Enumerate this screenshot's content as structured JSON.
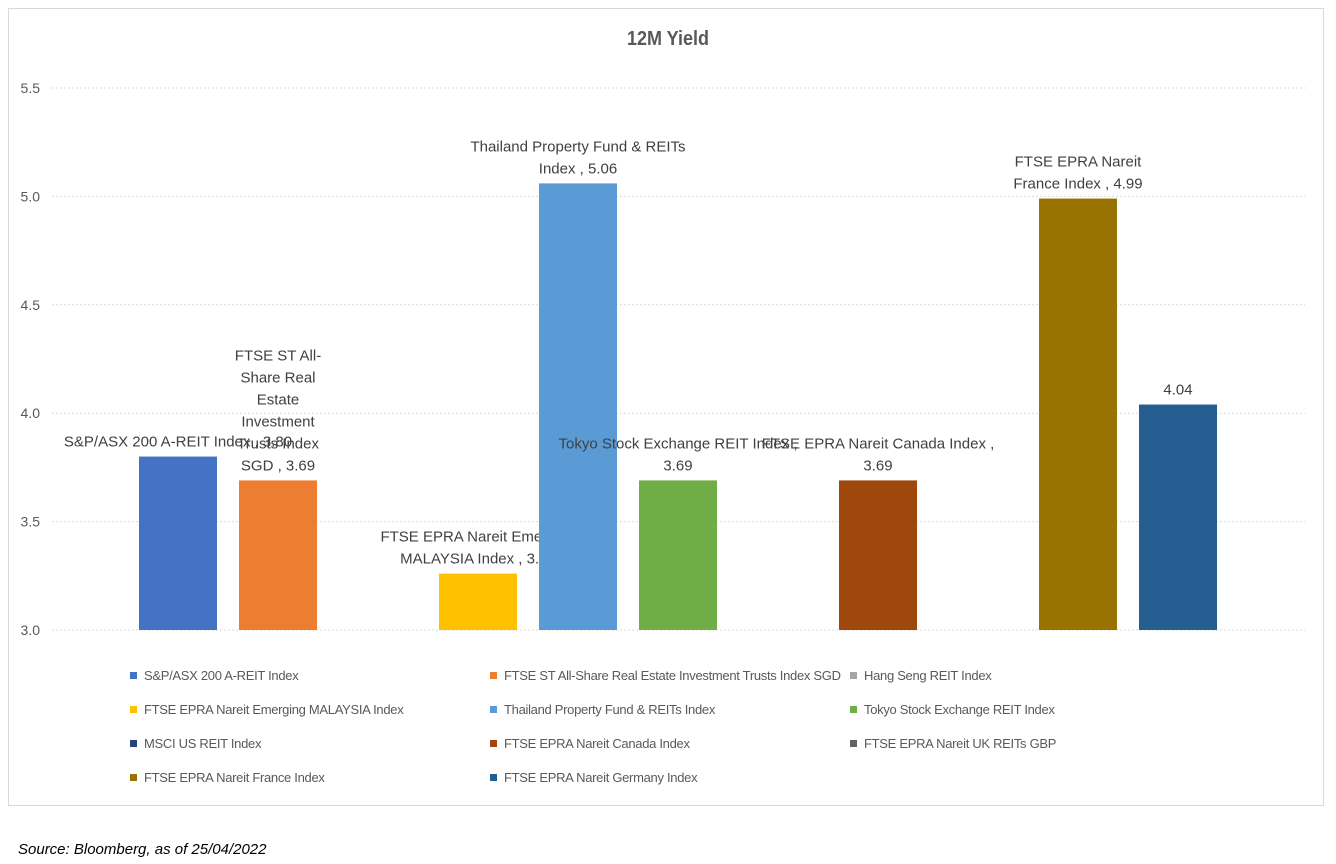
{
  "chart_data": {
    "type": "bar",
    "title": "12M Yield",
    "xlabel": "",
    "ylabel": "",
    "ylim": [
      3.0,
      5.5
    ],
    "yticks": [
      "5.5",
      "5.0",
      "4.5",
      "4.0",
      "3.5",
      "3.0"
    ],
    "grid": true,
    "legend_position": "bottom",
    "series": [
      {
        "name": "S&P/ASX 200 A-REIT Index",
        "value": 3.8,
        "color": "#4472C4",
        "label_lines": [
          "S&P/ASX 200 A-REIT Index , 3.80"
        ]
      },
      {
        "name": "FTSE ST All-Share Real Estate Investment Trusts Index SGD",
        "value": 3.69,
        "color": "#ED7D31",
        "label_lines": [
          "FTSE ST All-",
          "Share Real",
          "Estate",
          "Investment",
          "Trusts Index",
          "SGD , 3.69"
        ]
      },
      {
        "name": "Hang Seng REIT Index",
        "value": null,
        "color": "#A5A5A5",
        "label_lines": []
      },
      {
        "name": "FTSE EPRA Nareit Emerging MALAYSIA Index",
        "value": 3.26,
        "color": "#FFC000",
        "label_lines": [
          "FTSE EPRA Nareit Emerging",
          "MALAYSIA Index , 3.26"
        ]
      },
      {
        "name": "Thailand Property Fund & REITs Index",
        "value": 5.06,
        "color": "#5B9BD5",
        "label_lines": [
          "Thailand Property Fund & REITs",
          "Index , 5.06"
        ]
      },
      {
        "name": "Tokyo Stock Exchange REIT Index",
        "value": 3.69,
        "color": "#70AD47",
        "label_lines": [
          "Tokyo Stock Exchange REIT Index ,",
          "3.69"
        ]
      },
      {
        "name": "MSCI US REIT Index",
        "value": null,
        "color": "#264478",
        "label_lines": []
      },
      {
        "name": "FTSE EPRA Nareit Canada Index",
        "value": 3.69,
        "color": "#9E480E",
        "label_lines": [
          "FTSE EPRA Nareit Canada Index ,",
          "3.69"
        ]
      },
      {
        "name": "FTSE EPRA Nareit UK REITs GBP",
        "value": null,
        "color": "#636363",
        "label_lines": []
      },
      {
        "name": "FTSE EPRA Nareit France Index",
        "value": 4.99,
        "color": "#997300",
        "label_lines": [
          "FTSE EPRA Nareit",
          "France Index , 4.99"
        ]
      },
      {
        "name": "FTSE EPRA Nareit Germany Index",
        "value": 4.04,
        "color": "#255E91",
        "label_lines": [
          "4.04"
        ]
      }
    ]
  },
  "source": "Source: Bloomberg, as of 25/04/2022"
}
